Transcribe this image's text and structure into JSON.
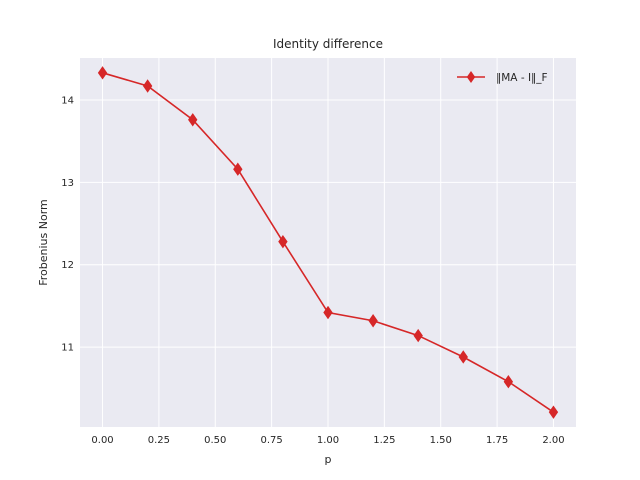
{
  "chart_data": {
    "type": "line",
    "title": "Identity difference",
    "xlabel": "p",
    "ylabel": "Frobenius Norm",
    "x": [
      0.0,
      0.2,
      0.4,
      0.6,
      0.8,
      1.0,
      1.2,
      1.4,
      1.6,
      1.8,
      2.0
    ],
    "series": [
      {
        "name": "‖MA - I‖_F",
        "color": "#d62728",
        "marker": "diamond",
        "values": [
          14.33,
          14.17,
          13.76,
          13.16,
          12.28,
          11.42,
          11.32,
          11.14,
          10.88,
          10.58,
          10.21
        ]
      }
    ],
    "xticks": [
      "0.00",
      "0.25",
      "0.50",
      "0.75",
      "1.00",
      "1.25",
      "1.50",
      "1.75",
      "2.00"
    ],
    "yticks": [
      "11",
      "12",
      "13",
      "14"
    ],
    "xlim": [
      -0.1,
      2.1
    ],
    "ylim": [
      10.03,
      14.51
    ],
    "grid": true,
    "legend_position": "top-right",
    "background_color": "#eaeaf2"
  }
}
